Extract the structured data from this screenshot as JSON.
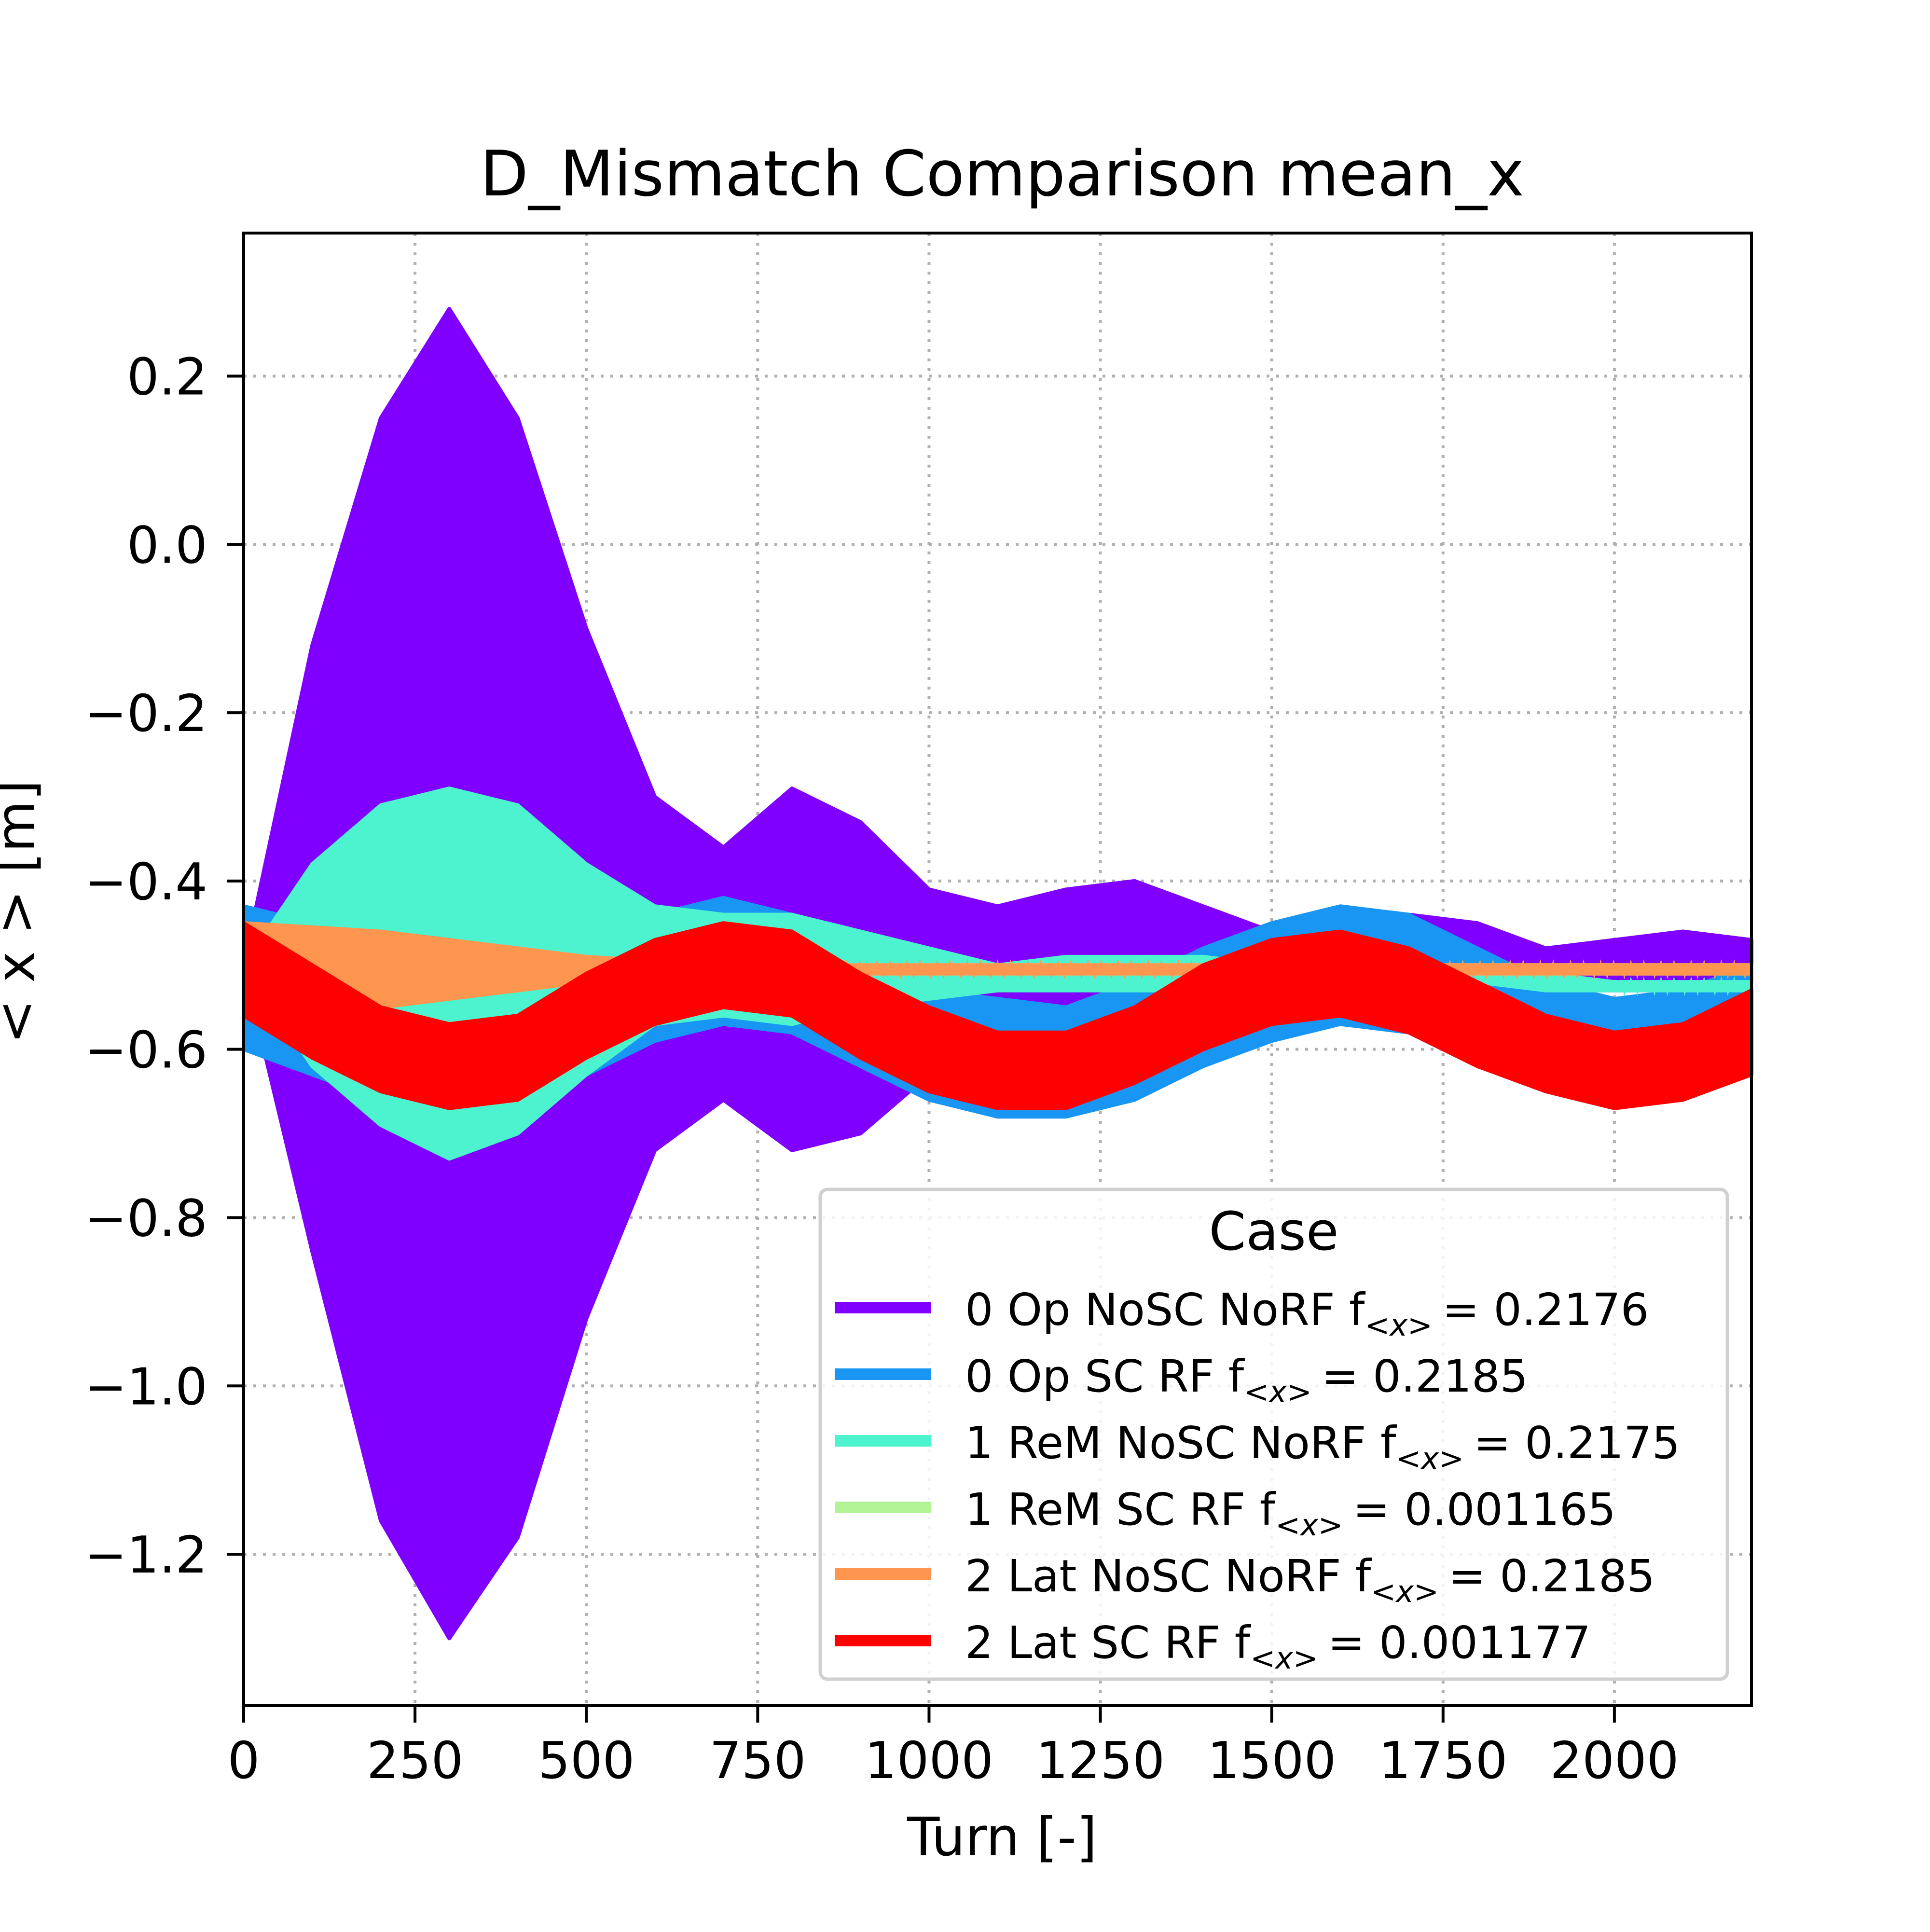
{
  "chart_data": {
    "type": "line",
    "title": "D_Mismatch Comparison mean_x",
    "xlabel": "Turn [-]",
    "ylabel": "< x >  [m]",
    "xlim": [
      0,
      2200
    ],
    "ylim": [
      -1.38,
      0.37
    ],
    "xticks": [
      0,
      250,
      500,
      750,
      1000,
      1250,
      1500,
      1750,
      2000
    ],
    "xtick_labels": [
      "0",
      "250",
      "500",
      "750",
      "1000",
      "1250",
      "1500",
      "1750",
      "2000"
    ],
    "yticks": [
      0.2,
      0.0,
      -0.2,
      -0.4,
      -0.6,
      -0.8,
      -1.0,
      -1.2
    ],
    "ytick_labels": [
      "0.2",
      "0.0",
      "−0.2",
      "−0.4",
      "−0.6",
      "−0.8",
      "−1.0",
      "−1.2"
    ],
    "grid": true,
    "legend_title": "Case",
    "legend_position": "lower right",
    "series": [
      {
        "name": "0 Op NoSC NoRF",
        "label_prefix": "0 Op NoSC NoRF f",
        "label_value": "= 0.2176",
        "color": "#8000ff",
        "x": [
          0,
          100,
          200,
          300,
          400,
          500,
          600,
          700,
          800,
          900,
          1000,
          1100,
          1200,
          1300,
          1400,
          1500,
          1600,
          1700,
          1800,
          1900,
          2000,
          2100,
          2200
        ],
        "upper": [
          -0.5,
          -0.12,
          0.15,
          0.28,
          0.15,
          -0.1,
          -0.3,
          -0.36,
          -0.29,
          -0.33,
          -0.41,
          -0.43,
          -0.41,
          -0.4,
          -0.43,
          -0.46,
          -0.44,
          -0.44,
          -0.45,
          -0.48,
          -0.47,
          -0.46,
          -0.47
        ],
        "lower": [
          -0.5,
          -0.84,
          -1.16,
          -1.3,
          -1.18,
          -0.92,
          -0.72,
          -0.66,
          -0.72,
          -0.7,
          -0.63,
          -0.6,
          -0.6,
          -0.6,
          -0.57,
          -0.55,
          -0.55,
          -0.55,
          -0.55,
          -0.53,
          -0.53,
          -0.53,
          -0.53
        ]
      },
      {
        "name": "0 Op SC RF",
        "label_prefix": "0 Op SC RF f",
        "label_value": "= 0.2185",
        "color": "#1996f3",
        "x": [
          0,
          100,
          200,
          300,
          400,
          500,
          600,
          700,
          800,
          900,
          1000,
          1100,
          1200,
          1300,
          1400,
          1500,
          1600,
          1700,
          1800,
          1900,
          2000,
          2100,
          2200
        ],
        "upper": [
          -0.43,
          -0.45,
          -0.47,
          -0.5,
          -0.5,
          -0.47,
          -0.44,
          -0.42,
          -0.44,
          -0.49,
          -0.53,
          -0.54,
          -0.55,
          -0.52,
          -0.48,
          -0.45,
          -0.43,
          -0.44,
          -0.48,
          -0.52,
          -0.54,
          -0.53,
          -0.5
        ],
        "lower": [
          -0.6,
          -0.63,
          -0.66,
          -0.68,
          -0.67,
          -0.63,
          -0.59,
          -0.57,
          -0.58,
          -0.62,
          -0.66,
          -0.68,
          -0.68,
          -0.66,
          -0.62,
          -0.59,
          -0.57,
          -0.58,
          -0.62,
          -0.65,
          -0.67,
          -0.66,
          -0.63
        ]
      },
      {
        "name": "1 ReM NoSC NoRF",
        "label_prefix": "1 ReM NoSC NoRF f",
        "label_value": "= 0.2175",
        "color": "#4df3ce",
        "x": [
          0,
          100,
          200,
          300,
          400,
          500,
          600,
          700,
          800,
          900,
          1000,
          1100,
          1200,
          1300,
          1400,
          1500,
          1600,
          1700,
          1800,
          1900,
          2000,
          2100,
          2200
        ],
        "upper": [
          -0.5,
          -0.38,
          -0.31,
          -0.29,
          -0.31,
          -0.38,
          -0.43,
          -0.44,
          -0.44,
          -0.46,
          -0.48,
          -0.5,
          -0.49,
          -0.49,
          -0.49,
          -0.5,
          -0.5,
          -0.51,
          -0.51,
          -0.51,
          -0.52,
          -0.52,
          -0.52
        ],
        "lower": [
          -0.5,
          -0.62,
          -0.69,
          -0.73,
          -0.7,
          -0.63,
          -0.57,
          -0.56,
          -0.57,
          -0.55,
          -0.54,
          -0.53,
          -0.53,
          -0.53,
          -0.53,
          -0.52,
          -0.52,
          -0.52,
          -0.52,
          -0.53,
          -0.53,
          -0.53,
          -0.53
        ]
      },
      {
        "name": "1 ReM SC RF",
        "label_prefix": "1 ReM SC RF f",
        "label_value": "= 0.001165",
        "color": "#b2f396",
        "x": [
          0,
          500,
          1000,
          1500,
          2000,
          2200
        ],
        "upper": [
          -0.5,
          -0.5,
          -0.5,
          -0.5,
          -0.5,
          -0.5
        ],
        "lower": [
          -0.51,
          -0.51,
          -0.51,
          -0.51,
          -0.51,
          -0.51
        ]
      },
      {
        "name": "2 Lat NoSC NoRF",
        "label_prefix": "2 Lat NoSC NoRF f",
        "label_value": "= 0.2185",
        "color": "#ff964f",
        "x": [
          0,
          100,
          200,
          300,
          400,
          500,
          600,
          700,
          800,
          900,
          1000,
          1100,
          1200,
          1300,
          1400,
          1500,
          1600,
          1700,
          1800,
          1900,
          2000,
          2100,
          2200
        ],
        "upper": [
          -0.45,
          -0.455,
          -0.46,
          -0.47,
          -0.48,
          -0.49,
          -0.495,
          -0.5,
          -0.5,
          -0.5,
          -0.5,
          -0.5,
          -0.5,
          -0.5,
          -0.5,
          -0.5,
          -0.5,
          -0.5,
          -0.5,
          -0.5,
          -0.5,
          -0.5,
          -0.5
        ],
        "lower": [
          -0.55,
          -0.55,
          -0.55,
          -0.54,
          -0.53,
          -0.52,
          -0.515,
          -0.51,
          -0.51,
          -0.51,
          -0.51,
          -0.51,
          -0.51,
          -0.51,
          -0.51,
          -0.51,
          -0.51,
          -0.51,
          -0.51,
          -0.51,
          -0.51,
          -0.51,
          -0.51
        ]
      },
      {
        "name": "2 Lat SC RF",
        "label_prefix": "2 Lat SC RF f",
        "label_value": "= 0.001177",
        "color": "#ff0000",
        "x": [
          0,
          100,
          200,
          300,
          400,
          500,
          600,
          700,
          800,
          900,
          1000,
          1100,
          1200,
          1300,
          1400,
          1500,
          1600,
          1700,
          1800,
          1900,
          2000,
          2100,
          2200
        ],
        "upper": [
          -0.45,
          -0.5,
          -0.55,
          -0.57,
          -0.56,
          -0.51,
          -0.47,
          -0.45,
          -0.46,
          -0.51,
          -0.55,
          -0.58,
          -0.58,
          -0.55,
          -0.5,
          -0.47,
          -0.46,
          -0.48,
          -0.52,
          -0.56,
          -0.58,
          -0.57,
          -0.53
        ],
        "lower": [
          -0.56,
          -0.61,
          -0.65,
          -0.67,
          -0.66,
          -0.61,
          -0.57,
          -0.55,
          -0.56,
          -0.61,
          -0.65,
          -0.67,
          -0.67,
          -0.64,
          -0.6,
          -0.57,
          -0.56,
          -0.58,
          -0.62,
          -0.65,
          -0.67,
          -0.66,
          -0.63
        ]
      }
    ]
  }
}
